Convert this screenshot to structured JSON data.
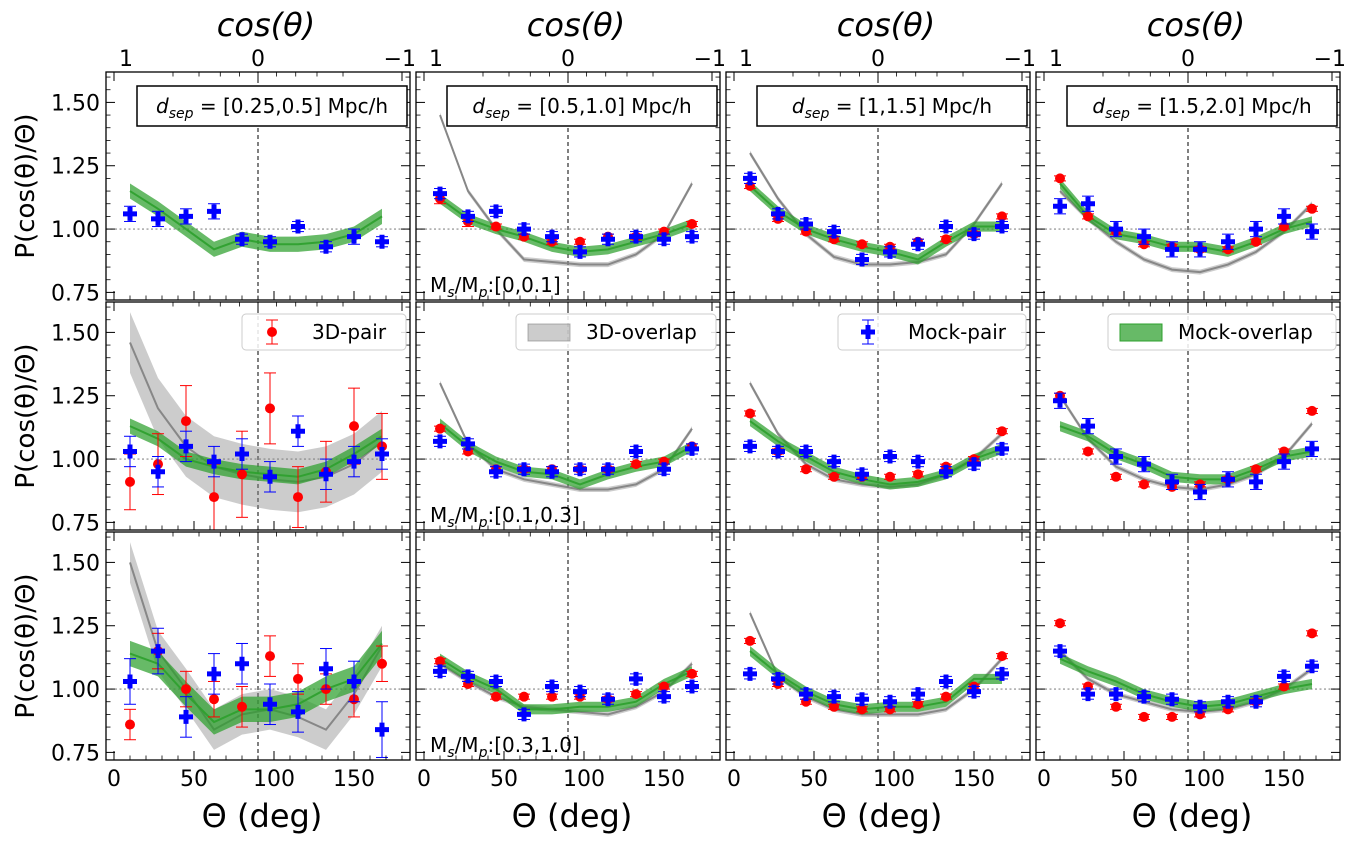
{
  "figure": {
    "top_axis_label": "cos(θ)",
    "top_ticks": [
      "1",
      "0",
      "−1"
    ],
    "bottom_axis_label": "Θ (deg)",
    "bottom_ticks": [
      "0",
      "50",
      "100",
      "150"
    ],
    "ylabel": "P(cos(θ)/Θ)",
    "y_ticks": [
      "0.75",
      "1.00",
      "1.25",
      "1.50"
    ],
    "colors": {
      "pair3d": "#ff0000",
      "mock_pair": "#0000ff",
      "overlap3d": "#808080",
      "mock_overlap": "#2ca02c"
    }
  },
  "chart_data": {
    "type": "scatter",
    "xlim": [
      -5,
      185
    ],
    "ylim": [
      0.72,
      1.62
    ],
    "x": [
      10,
      27.5,
      45,
      62.5,
      80,
      97.5,
      115,
      132.5,
      150,
      167.5
    ],
    "column_labels": [
      "d_sep = [0.25,0.5] Mpc/h",
      "d_sep = [0.5,1.0] Mpc/h",
      "d_sep = [1,1.5] Mpc/h",
      "d_sep = [1.5,2.0] Mpc/h"
    ],
    "row_labels": [
      "Ms/Mp:[0,0.1]",
      "Ms/Mp:[0.1,0.3]",
      "Ms/Mp:[0.3,1.0]"
    ],
    "legend": [
      "3D-pair",
      "3D-overlap",
      "Mock-pair",
      "Mock-overlap"
    ],
    "panels": [
      [
        {
          "mock_pair": {
            "y": [
              1.06,
              1.04,
              1.05,
              1.07,
              0.96,
              0.95,
              1.01,
              0.93,
              0.97,
              0.95
            ],
            "err": [
              0.03,
              0.03,
              0.03,
              0.03,
              0.02,
              0.02,
              0.02,
              0.02,
              0.03,
              0.02
            ]
          },
          "mock_overlap": {
            "y": [
              1.15,
              1.08,
              1.0,
              0.92,
              0.96,
              0.94,
              0.94,
              0.95,
              0.98,
              1.05
            ],
            "band": 0.03
          }
        },
        {
          "pair3d": {
            "y": [
              1.12,
              1.03,
              1.01,
              0.97,
              0.95,
              0.95,
              0.97,
              0.97,
              0.99,
              1.02
            ],
            "err": [
              0.02,
              0.02,
              0.01,
              0.01,
              0.01,
              0.01,
              0.01,
              0.01,
              0.01,
              0.01
            ]
          },
          "mock_pair": {
            "y": [
              1.14,
              1.05,
              1.07,
              1.0,
              0.97,
              0.91,
              0.96,
              0.97,
              0.96,
              0.97
            ],
            "err": [
              0.02,
              0.02,
              0.02,
              0.02,
              0.02,
              0.02,
              0.02,
              0.02,
              0.02,
              0.02
            ]
          },
          "overlap3d": {
            "y": [
              1.45,
              1.15,
              1.0,
              0.88,
              0.87,
              0.86,
              0.86,
              0.9,
              0.98,
              1.18
            ],
            "band": 0.01
          },
          "mock_overlap": {
            "y": [
              1.12,
              1.04,
              1.0,
              0.97,
              0.93,
              0.91,
              0.92,
              0.95,
              0.98,
              1.02
            ],
            "band": 0.02
          }
        },
        {
          "pair3d": {
            "y": [
              1.17,
              1.04,
              0.99,
              0.96,
              0.94,
              0.93,
              0.95,
              0.96,
              0.98,
              1.05
            ],
            "err": [
              0.01,
              0.01,
              0.01,
              0.01,
              0.01,
              0.01,
              0.01,
              0.01,
              0.01,
              0.01
            ]
          },
          "mock_pair": {
            "y": [
              1.2,
              1.06,
              1.02,
              0.99,
              0.88,
              0.91,
              0.94,
              1.01,
              0.98,
              1.01
            ],
            "err": [
              0.02,
              0.02,
              0.02,
              0.02,
              0.02,
              0.02,
              0.02,
              0.02,
              0.02,
              0.02
            ]
          },
          "overlap3d": {
            "y": [
              1.3,
              1.12,
              0.98,
              0.89,
              0.86,
              0.86,
              0.87,
              0.9,
              1.02,
              1.18
            ],
            "band": 0.01
          },
          "mock_overlap": {
            "y": [
              1.17,
              1.07,
              1.0,
              0.96,
              0.93,
              0.91,
              0.88,
              0.95,
              1.01,
              1.01
            ],
            "band": 0.02
          }
        },
        {
          "pair3d": {
            "y": [
              1.2,
              1.05,
              0.99,
              0.94,
              0.93,
              0.92,
              0.92,
              0.95,
              1.01,
              1.08
            ],
            "err": [
              0.01,
              0.01,
              0.01,
              0.01,
              0.01,
              0.01,
              0.01,
              0.01,
              0.01,
              0.01
            ]
          },
          "mock_pair": {
            "y": [
              1.09,
              1.1,
              1.0,
              0.97,
              0.92,
              0.92,
              0.95,
              1.0,
              1.05,
              0.99
            ],
            "err": [
              0.03,
              0.03,
              0.03,
              0.03,
              0.03,
              0.03,
              0.03,
              0.03,
              0.03,
              0.03
            ]
          },
          "overlap3d": {
            "y": [
              1.15,
              1.04,
              0.95,
              0.88,
              0.84,
              0.83,
              0.86,
              0.91,
              0.99,
              1.1
            ],
            "band": 0.01
          },
          "mock_overlap": {
            "y": [
              1.18,
              1.05,
              0.98,
              0.96,
              0.93,
              0.93,
              0.91,
              0.95,
              1.0,
              1.03
            ],
            "band": 0.02
          }
        }
      ],
      [
        {
          "pair3d": {
            "y": [
              0.91,
              0.98,
              1.15,
              0.85,
              0.94,
              1.2,
              0.85,
              0.95,
              1.13,
              1.05
            ],
            "err": [
              0.11,
              0.12,
              0.14,
              0.13,
              0.17,
              0.14,
              0.12,
              0.12,
              0.15,
              0.13
            ]
          },
          "mock_pair": {
            "y": [
              1.03,
              0.95,
              1.05,
              0.99,
              1.02,
              0.93,
              1.11,
              0.94,
              0.99,
              1.02
            ],
            "err": [
              0.06,
              0.06,
              0.06,
              0.06,
              0.06,
              0.06,
              0.06,
              0.06,
              0.06,
              0.06
            ]
          },
          "overlap3d": {
            "y": [
              1.46,
              1.2,
              1.05,
              0.97,
              0.94,
              0.92,
              0.91,
              0.93,
              0.98,
              1.07
            ],
            "band": 0.12
          },
          "mock_overlap": {
            "y": [
              1.13,
              1.08,
              1.0,
              0.97,
              0.95,
              0.94,
              0.93,
              0.96,
              1.02,
              1.09
            ],
            "band": 0.03
          }
        },
        {
          "pair3d": {
            "y": [
              1.12,
              1.03,
              0.96,
              0.96,
              0.96,
              0.96,
              0.96,
              0.98,
              0.99,
              1.05
            ],
            "err": [
              0.01,
              0.01,
              0.01,
              0.01,
              0.01,
              0.01,
              0.01,
              0.01,
              0.01,
              0.01
            ]
          },
          "mock_pair": {
            "y": [
              1.07,
              1.06,
              0.95,
              0.96,
              0.95,
              0.96,
              0.96,
              1.03,
              0.96,
              1.04
            ],
            "err": [
              0.02,
              0.02,
              0.02,
              0.02,
              0.02,
              0.02,
              0.02,
              0.02,
              0.02,
              0.02
            ]
          },
          "overlap3d": {
            "y": [
              1.3,
              1.06,
              0.96,
              0.92,
              0.9,
              0.88,
              0.88,
              0.9,
              0.96,
              1.12
            ],
            "band": 0.01
          },
          "mock_overlap": {
            "y": [
              1.14,
              1.05,
              0.99,
              0.95,
              0.94,
              0.9,
              0.94,
              0.97,
              0.99,
              1.05
            ],
            "band": 0.02
          }
        },
        {
          "pair3d": {
            "y": [
              1.18,
              1.03,
              0.96,
              0.93,
              0.93,
              0.93,
              0.94,
              0.97,
              1.0,
              1.11
            ],
            "err": [
              0.01,
              0.01,
              0.01,
              0.01,
              0.01,
              0.01,
              0.01,
              0.01,
              0.01,
              0.01
            ]
          },
          "mock_pair": {
            "y": [
              1.05,
              1.03,
              1.03,
              0.99,
              0.94,
              1.01,
              0.99,
              0.95,
              0.98,
              1.04
            ],
            "err": [
              0.02,
              0.02,
              0.02,
              0.02,
              0.02,
              0.02,
              0.02,
              0.02,
              0.02,
              0.02
            ]
          },
          "overlap3d": {
            "y": [
              1.3,
              1.1,
              0.98,
              0.92,
              0.9,
              0.89,
              0.9,
              0.94,
              1.0,
              1.1
            ],
            "band": 0.01
          },
          "mock_overlap": {
            "y": [
              1.15,
              1.07,
              1.01,
              0.95,
              0.92,
              0.9,
              0.91,
              0.94,
              1.0,
              1.04
            ],
            "band": 0.02
          }
        },
        {
          "pair3d": {
            "y": [
              1.25,
              1.03,
              0.93,
              0.9,
              0.89,
              0.9,
              0.92,
              0.96,
              1.03,
              1.19
            ],
            "err": [
              0.01,
              0.01,
              0.01,
              0.01,
              0.01,
              0.01,
              0.01,
              0.01,
              0.01,
              0.01
            ]
          },
          "mock_pair": {
            "y": [
              1.23,
              1.13,
              1.01,
              0.98,
              0.91,
              0.87,
              0.92,
              0.91,
              0.99,
              1.04
            ],
            "err": [
              0.03,
              0.03,
              0.03,
              0.03,
              0.03,
              0.03,
              0.03,
              0.03,
              0.03,
              0.03
            ]
          },
          "overlap3d": {
            "y": [
              1.25,
              1.08,
              0.97,
              0.92,
              0.89,
              0.88,
              0.9,
              0.94,
              1.01,
              1.14
            ],
            "band": 0.01
          },
          "mock_overlap": {
            "y": [
              1.13,
              1.09,
              1.02,
              0.98,
              0.93,
              0.92,
              0.92,
              0.96,
              1.01,
              1.03
            ],
            "band": 0.02
          }
        }
      ],
      [
        {
          "pair3d": {
            "y": [
              0.86,
              1.15,
              1.0,
              0.96,
              0.93,
              1.13,
              1.04,
              1.0,
              0.96,
              1.1
            ],
            "err": [
              0.06,
              0.07,
              0.07,
              0.07,
              0.08,
              0.08,
              0.06,
              0.06,
              0.07,
              0.07
            ]
          },
          "mock_pair": {
            "y": [
              1.03,
              1.15,
              0.89,
              1.06,
              1.1,
              0.94,
              0.91,
              1.08,
              1.03,
              0.84
            ],
            "err": [
              0.09,
              0.09,
              0.08,
              0.08,
              0.08,
              0.08,
              0.08,
              0.08,
              0.08,
              0.11
            ]
          },
          "overlap3d": {
            "y": [
              1.5,
              1.15,
              1.0,
              0.84,
              0.9,
              0.92,
              0.89,
              0.84,
              0.98,
              1.17
            ],
            "band": 0.08
          },
          "mock_overlap": {
            "y": [
              1.14,
              1.1,
              0.98,
              0.87,
              0.92,
              0.92,
              0.94,
              1.0,
              1.04,
              1.18
            ],
            "band": 0.05
          }
        },
        {
          "pair3d": {
            "y": [
              1.11,
              1.02,
              0.97,
              0.97,
              0.97,
              0.97,
              0.96,
              0.98,
              1.01,
              1.06
            ],
            "err": [
              0.01,
              0.01,
              0.01,
              0.01,
              0.01,
              0.01,
              0.01,
              0.01,
              0.01,
              0.01
            ]
          },
          "mock_pair": {
            "y": [
              1.07,
              1.05,
              1.03,
              0.9,
              1.01,
              0.99,
              0.96,
              1.04,
              0.97,
              1.01
            ],
            "err": [
              0.02,
              0.02,
              0.02,
              0.02,
              0.02,
              0.02,
              0.02,
              0.02,
              0.02,
              0.02
            ]
          },
          "overlap3d": {
            "y": [
              1.1,
              1.03,
              0.97,
              0.93,
              0.92,
              0.91,
              0.9,
              0.93,
              0.99,
              1.1
            ],
            "band": 0.01
          },
          "mock_overlap": {
            "y": [
              1.12,
              1.05,
              1.0,
              0.92,
              0.92,
              0.93,
              0.93,
              0.95,
              1.02,
              1.07
            ],
            "band": 0.02
          }
        },
        {
          "pair3d": {
            "y": [
              1.19,
              1.02,
              0.95,
              0.93,
              0.92,
              0.92,
              0.94,
              0.97,
              1.01,
              1.13
            ],
            "err": [
              0.01,
              0.01,
              0.01,
              0.01,
              0.01,
              0.01,
              0.01,
              0.01,
              0.01,
              0.01
            ]
          },
          "mock_pair": {
            "y": [
              1.06,
              1.04,
              0.98,
              0.97,
              0.96,
              0.95,
              0.98,
              1.03,
              0.99,
              1.06
            ],
            "err": [
              0.02,
              0.02,
              0.02,
              0.02,
              0.02,
              0.02,
              0.02,
              0.02,
              0.02,
              0.02
            ]
          },
          "overlap3d": {
            "y": [
              1.3,
              1.05,
              0.97,
              0.92,
              0.9,
              0.9,
              0.9,
              0.92,
              1.0,
              1.12
            ],
            "band": 0.01
          },
          "mock_overlap": {
            "y": [
              1.15,
              1.06,
              0.99,
              0.94,
              0.92,
              0.93,
              0.93,
              0.95,
              1.04,
              1.04
            ],
            "band": 0.02
          }
        },
        {
          "pair3d": {
            "y": [
              1.26,
              1.01,
              0.93,
              0.89,
              0.89,
              0.9,
              0.92,
              0.95,
              1.01,
              1.22
            ],
            "err": [
              0.01,
              0.01,
              0.01,
              0.01,
              0.01,
              0.01,
              0.01,
              0.01,
              0.01,
              0.01
            ]
          },
          "mock_pair": {
            "y": [
              1.15,
              0.98,
              0.98,
              0.97,
              0.96,
              0.93,
              0.95,
              0.95,
              1.05,
              1.09
            ],
            "err": [
              0.02,
              0.02,
              0.02,
              0.02,
              0.02,
              0.02,
              0.02,
              0.02,
              0.02,
              0.02
            ]
          },
          "overlap3d": {
            "y": [
              1.15,
              1.04,
              0.98,
              0.95,
              0.92,
              0.91,
              0.92,
              0.95,
              1.0,
              1.08
            ],
            "band": 0.01
          },
          "mock_overlap": {
            "y": [
              1.12,
              1.07,
              1.03,
              0.98,
              0.95,
              0.93,
              0.94,
              0.97,
              1.0,
              1.02
            ],
            "band": 0.02
          }
        }
      ]
    ]
  }
}
